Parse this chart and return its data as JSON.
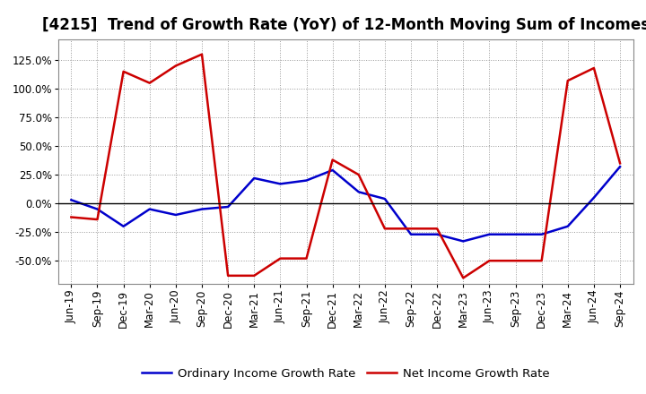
{
  "title": "[4215]  Trend of Growth Rate (YoY) of 12-Month Moving Sum of Incomes",
  "x_labels": [
    "Jun-19",
    "Sep-19",
    "Dec-19",
    "Mar-20",
    "Jun-20",
    "Sep-20",
    "Dec-20",
    "Mar-21",
    "Jun-21",
    "Sep-21",
    "Dec-21",
    "Mar-22",
    "Jun-22",
    "Sep-22",
    "Dec-22",
    "Mar-23",
    "Jun-23",
    "Sep-23",
    "Dec-23",
    "Mar-24",
    "Jun-24",
    "Sep-24"
  ],
  "ordinary_income": [
    3,
    -5,
    -20,
    -5,
    -10,
    -5,
    -3,
    22,
    17,
    20,
    29,
    10,
    4,
    -27,
    -27,
    -33,
    -27,
    -27,
    -27,
    -20,
    5,
    32
  ],
  "net_income": [
    -12,
    -14,
    115,
    105,
    120,
    130,
    -63,
    -63,
    -48,
    -48,
    38,
    25,
    -22,
    -22,
    -22,
    -65,
    -50,
    -50,
    -50,
    107,
    118,
    35
  ],
  "ordinary_color": "#0000CC",
  "net_color": "#CC0000",
  "background_color": "#FFFFFF",
  "grid_color": "#999999",
  "ylim": [
    -70,
    143
  ],
  "yticks": [
    -50,
    -25,
    0,
    25,
    50,
    75,
    100,
    125
  ],
  "legend_ordinary": "Ordinary Income Growth Rate",
  "legend_net": "Net Income Growth Rate",
  "title_fontsize": 12,
  "axis_fontsize": 8.5,
  "legend_fontsize": 9.5
}
